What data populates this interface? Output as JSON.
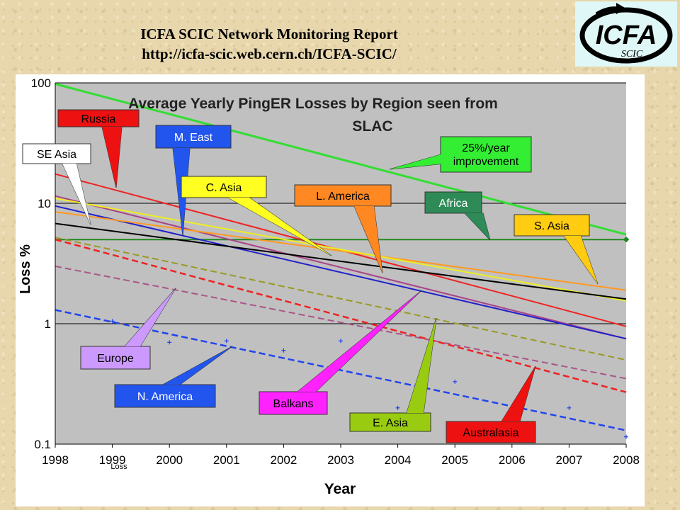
{
  "header": {
    "title": "ICFA SCIC Network Monitoring Report",
    "url": "http://icfa-scic.web.cern.ch/ICFA-SCIC/"
  },
  "logo": {
    "text": "ICFA",
    "subtext": "SCIC"
  },
  "chart_data": {
    "type": "line",
    "title_line1": "Average Yearly PingER Losses by Region seen from",
    "title_line2": "SLAC",
    "xlabel": "Year",
    "ylabel": "Loss %",
    "xlim": [
      1998,
      2008
    ],
    "ylim": [
      0.1,
      100
    ],
    "yscale": "log",
    "xticks": [
      "1998",
      "1999",
      "2000",
      "2001",
      "2002",
      "2003",
      "2004",
      "2005",
      "2006",
      "2007",
      "2008"
    ],
    "yticks": [
      "100",
      "10",
      "1",
      "0.1"
    ],
    "grid": "horizontal",
    "stray_label": "Loss",
    "colors": {
      "plot_bg": "#c0c0c0",
      "frame_bg": "#ffffff"
    },
    "series": [
      {
        "name": "25%/year improvement",
        "color": "#33dd33",
        "style": "solid",
        "width": 3,
        "x": [
          1998,
          2008
        ],
        "y": [
          98,
          5.5
        ]
      },
      {
        "name": "Africa",
        "color": "#228822",
        "style": "solid",
        "width": 2,
        "x": [
          1998,
          2008
        ],
        "y": [
          5.0,
          5.0
        ]
      },
      {
        "name": "Russia",
        "color": "#ee2222",
        "style": "solid",
        "width": 2,
        "x": [
          1998,
          2008
        ],
        "y": [
          17.5,
          0.95
        ]
      },
      {
        "name": "Balkans",
        "color": "#aa4488",
        "style": "solid",
        "width": 2,
        "x": [
          1998,
          2008
        ],
        "y": [
          11.5,
          0.75
        ]
      },
      {
        "name": "M. East",
        "color": "#2222cc",
        "style": "solid",
        "width": 2,
        "x": [
          1998,
          2008
        ],
        "y": [
          9.5,
          0.75
        ]
      },
      {
        "name": "L. America",
        "color": "#ff9922",
        "style": "solid",
        "width": 2,
        "x": [
          1998,
          2008
        ],
        "y": [
          8.5,
          1.9
        ]
      },
      {
        "name": "C. Asia",
        "color": "#eeee22",
        "style": "solid",
        "width": 2,
        "x": [
          1998,
          2008
        ],
        "y": [
          11.0,
          1.55
        ]
      },
      {
        "name": "SE Asia",
        "color": "#000000",
        "style": "solid",
        "width": 2,
        "x": [
          1998,
          2008
        ],
        "y": [
          6.8,
          1.6
        ]
      },
      {
        "name": "E. Asia",
        "color": "#999922",
        "style": "dashed",
        "width": 2,
        "x": [
          1998,
          2008
        ],
        "y": [
          5.2,
          0.5
        ]
      },
      {
        "name": "Europe",
        "color": "#aa5588",
        "style": "dashed",
        "width": 2,
        "x": [
          1998,
          2008
        ],
        "y": [
          3.0,
          0.35
        ]
      },
      {
        "name": "Australasia",
        "color": "#ee2222",
        "style": "dashed",
        "width": 2.5,
        "x": [
          1998,
          2008
        ],
        "y": [
          5.0,
          0.27
        ]
      },
      {
        "name": "N. America",
        "color": "#2244ee",
        "style": "dashed",
        "width": 2.5,
        "x": [
          1998,
          2008
        ],
        "y": [
          1.3,
          0.13
        ]
      }
    ],
    "points": [
      {
        "color": "#2244ee",
        "x": [
          1999,
          2000,
          2001,
          2002,
          2003,
          2004,
          2005,
          2007,
          2008
        ],
        "y": [
          1.05,
          0.7,
          0.72,
          0.6,
          0.72,
          0.2,
          0.33,
          0.2,
          0.115
        ]
      },
      {
        "color": "#228822",
        "x": [
          2008
        ],
        "y": [
          5.0
        ]
      }
    ],
    "annotations": [
      {
        "text": "Russia",
        "fill": "#ee1111",
        "color": "#000000"
      },
      {
        "text": "SE Asia",
        "fill": "#ffffff",
        "color": "#000000"
      },
      {
        "text": "M. East",
        "fill": "#2255ee",
        "color": "#ffffff"
      },
      {
        "text": "C. Asia",
        "fill": "#ffff22",
        "color": "#000000"
      },
      {
        "text": "L. America",
        "fill": "#ff8822",
        "color": "#000000"
      },
      {
        "text": "Africa",
        "fill": "#2e8b57",
        "color": "#ffffff"
      },
      {
        "text": "25%/year",
        "text2": "improvement",
        "fill": "#33ee33",
        "color": "#000000"
      },
      {
        "text": "S. Asia",
        "fill": "#ffcc11",
        "color": "#000000"
      },
      {
        "text": "Europe",
        "fill": "#cc99ff",
        "color": "#000000"
      },
      {
        "text": "N. America",
        "fill": "#2255ee",
        "color": "#ffffff"
      },
      {
        "text": "Balkans",
        "fill": "#ff22ff",
        "color": "#000000"
      },
      {
        "text": "E. Asia",
        "fill": "#99cc11",
        "color": "#000000"
      },
      {
        "text": "Australasia",
        "fill": "#ee1111",
        "color": "#000000"
      }
    ]
  }
}
